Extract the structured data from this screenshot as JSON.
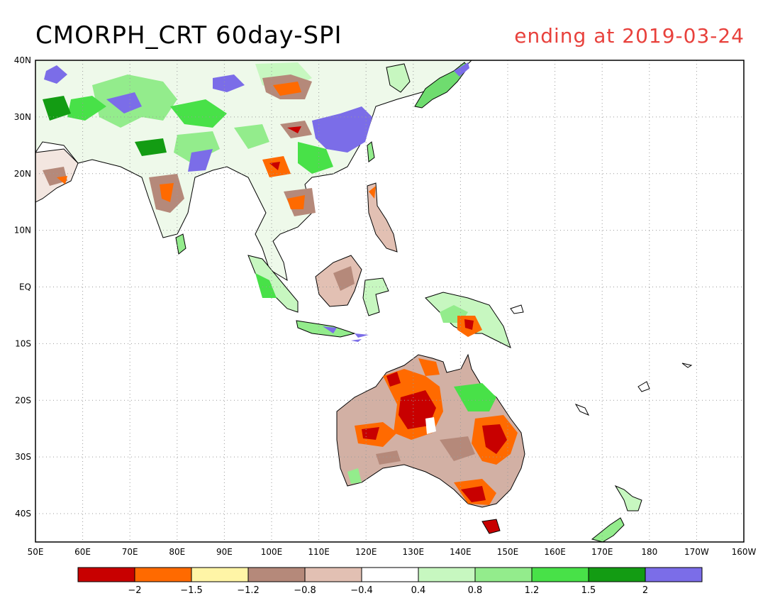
{
  "title": "CMORPH_CRT 60day-SPI",
  "subtitle": "ending at 2019-03-24",
  "subtitle_color": "#e8413c",
  "map": {
    "lon_range": [
      50,
      200
    ],
    "lat_range": [
      -45,
      40
    ],
    "lon_ticks": [
      "50E",
      "60E",
      "70E",
      "80E",
      "90E",
      "100E",
      "110E",
      "120E",
      "130E",
      "140E",
      "150E",
      "160E",
      "170E",
      "180",
      "170W",
      "160W"
    ],
    "lat_ticks": [
      "40N",
      "30N",
      "20N",
      "10N",
      "EQ",
      "10S",
      "20S",
      "30S",
      "40S"
    ],
    "grid": true,
    "grid_color": "#9a9a9a"
  },
  "colorbar": {
    "colors": [
      "#c80000",
      "#ff6a00",
      "#fff5a6",
      "#b5897a",
      "#e2c0b3",
      "#ffffff",
      "#c7f7c0",
      "#93ec8c",
      "#48e148",
      "#139c13",
      "#7b6de8"
    ],
    "labels": [
      "-2",
      "-1.5",
      "-1.2",
      "-0.8",
      "-0.4",
      "0.4",
      "0.8",
      "1.2",
      "1.5",
      "2"
    ]
  },
  "colors": {
    "dry_extreme": "#c80000",
    "dry_severe": "#ff6a00",
    "dry_mod": "#b5897a",
    "wet_mod": "#93ec8c",
    "wet_severe": "#139c13",
    "wet_extreme": "#7b6de8"
  }
}
